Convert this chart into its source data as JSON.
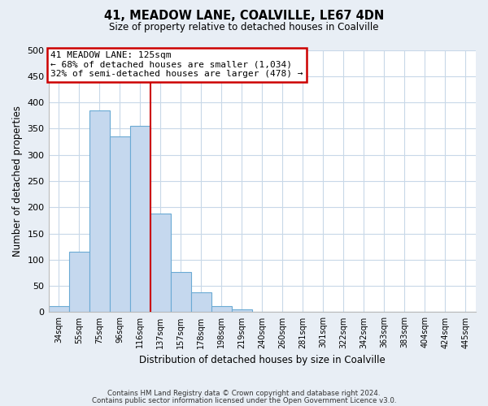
{
  "title": "41, MEADOW LANE, COALVILLE, LE67 4DN",
  "subtitle": "Size of property relative to detached houses in Coalville",
  "xlabel": "Distribution of detached houses by size in Coalville",
  "ylabel": "Number of detached properties",
  "bar_labels": [
    "34sqm",
    "55sqm",
    "75sqm",
    "96sqm",
    "116sqm",
    "137sqm",
    "157sqm",
    "178sqm",
    "198sqm",
    "219sqm",
    "240sqm",
    "260sqm",
    "281sqm",
    "301sqm",
    "322sqm",
    "342sqm",
    "363sqm",
    "383sqm",
    "404sqm",
    "424sqm",
    "445sqm"
  ],
  "bar_values": [
    12,
    115,
    385,
    335,
    355,
    188,
    76,
    38,
    12,
    6,
    0,
    0,
    0,
    0,
    0,
    0,
    1,
    0,
    0,
    0,
    1
  ],
  "bar_color": "#c5d8ee",
  "bar_edge_color": "#6aaad4",
  "marker_line_color": "#cc0000",
  "annotation_box_color": "#cc0000",
  "annotation_title": "41 MEADOW LANE: 125sqm",
  "annotation_line1": "← 68% of detached houses are smaller (1,034)",
  "annotation_line2": "32% of semi-detached houses are larger (478) →",
  "ylim": [
    0,
    500
  ],
  "yticks": [
    0,
    50,
    100,
    150,
    200,
    250,
    300,
    350,
    400,
    450,
    500
  ],
  "red_line_bin": 4,
  "footnote1": "Contains HM Land Registry data © Crown copyright and database right 2024.",
  "footnote2": "Contains public sector information licensed under the Open Government Licence v3.0.",
  "bg_color": "#e8eef5",
  "plot_bg_color": "#ffffff",
  "grid_color": "#c8d8e8",
  "figsize": [
    6.0,
    5.0
  ],
  "dpi": 100
}
